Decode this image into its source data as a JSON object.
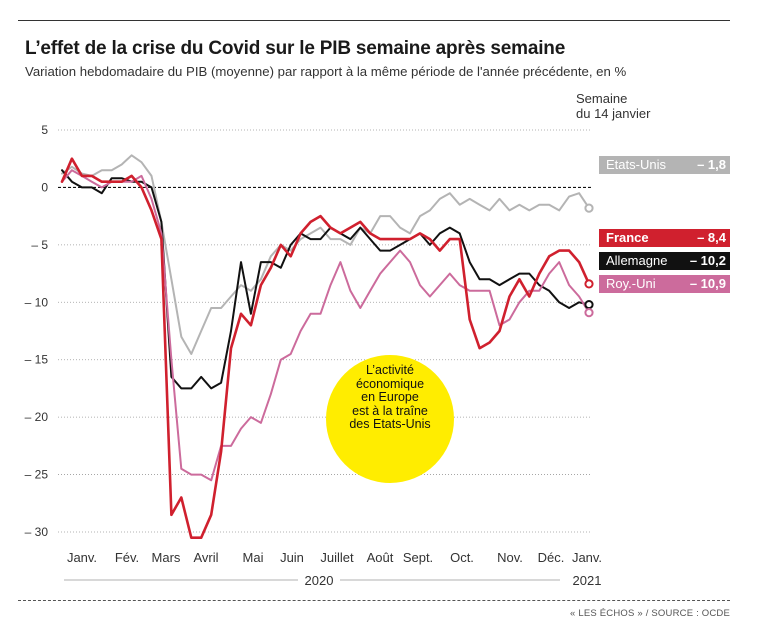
{
  "header": {
    "title": "L’effet de la crise du Covid sur le PIB semaine après semaine",
    "subtitle": "Variation hebdomadaire du PIB (moyenne) par rapport à la même période de l'année précédente, en %"
  },
  "week_note": "Semaine\ndu 14 janvier",
  "annotation": "L’activité\néconomique\nen Europe\nest à la traîne\ndes Etats-Unis",
  "source": "« LES ÉCHOS » / SOURCE : OCDE",
  "colors": {
    "us": "#b4b4b4",
    "france": "#d0202e",
    "germany": "#111111",
    "uk": "#cc6b9c",
    "bubble": "#ffed00"
  },
  "legend": [
    {
      "name": "Etats-Unis",
      "value": "– 1,8"
    },
    {
      "name": "France",
      "value": "– 8,4"
    },
    {
      "name": "Allemagne",
      "value": "– 10,2"
    },
    {
      "name": "Roy.-Uni",
      "value": "– 10,9"
    }
  ],
  "chart_data": {
    "type": "line",
    "title": "L’effet de la crise du Covid sur le PIB semaine après semaine",
    "subtitle": "Variation hebdomadaire du PIB (moyenne) par rapport à la même période de l'année précédente, en %",
    "ylim": [
      -30,
      5
    ],
    "yticks": [
      5,
      0,
      -5,
      -10,
      -15,
      -20,
      -25,
      -30
    ],
    "ytick_labels": [
      "5",
      "0",
      "– 5",
      "– 10",
      "– 15",
      "– 20",
      "– 25",
      "– 30"
    ],
    "xtick_labels": [
      "Janv.",
      "Fév.",
      "Mars",
      "Avril",
      "Mai",
      "Juin",
      "Juillet",
      "Août",
      "Sept.",
      "Oct.",
      "Nov.",
      "Déc.",
      "Janv."
    ],
    "year_labels": [
      "2020",
      "2021"
    ],
    "x_unit": "week of period (Jan 2020 – mid-Jan 2021)",
    "grid": "horizontal dotted, zero line dashed",
    "legend_position": "right",
    "series": [
      {
        "name": "Etats-Unis",
        "final": -1.8,
        "x": [
          0,
          1,
          2,
          3,
          4,
          5,
          6,
          7,
          8,
          9,
          10,
          11,
          12,
          13,
          14,
          15,
          16,
          17,
          18,
          19,
          20,
          21,
          22,
          23,
          24,
          25,
          26,
          27,
          28,
          29,
          30,
          31,
          32,
          33,
          34,
          35,
          36,
          37,
          38,
          39,
          40,
          41,
          42,
          43,
          44,
          45,
          46,
          47,
          48,
          49,
          50,
          51,
          52,
          53
        ],
        "y": [
          1.2,
          1.8,
          1.2,
          1.0,
          1.5,
          1.5,
          2.0,
          2.8,
          2.2,
          1.0,
          -3.0,
          -8.0,
          -13.0,
          -14.5,
          -12.5,
          -10.5,
          -10.5,
          -9.5,
          -8.5,
          -9.0,
          -8.0,
          -6.0,
          -5.0,
          -5.5,
          -4.5,
          -4.0,
          -3.5,
          -4.5,
          -4.5,
          -5.0,
          -3.5,
          -4.0,
          -2.5,
          -2.5,
          -3.5,
          -4.0,
          -2.5,
          -2.0,
          -1.0,
          -0.5,
          -1.5,
          -1.0,
          -1.5,
          -2.0,
          -1.0,
          -2.0,
          -1.5,
          -2.0,
          -1.5,
          -1.5,
          -2.0,
          -0.8,
          -0.5,
          -1.8
        ]
      },
      {
        "name": "Allemagne",
        "final": -10.2,
        "x": [
          0,
          1,
          2,
          3,
          4,
          5,
          6,
          7,
          8,
          9,
          10,
          11,
          12,
          13,
          14,
          15,
          16,
          17,
          18,
          19,
          20,
          21,
          22,
          23,
          24,
          25,
          26,
          27,
          28,
          29,
          30,
          31,
          32,
          33,
          34,
          35,
          36,
          37,
          38,
          39,
          40,
          41,
          42,
          43,
          44,
          45,
          46,
          47,
          48,
          49,
          50,
          51,
          52,
          53
        ],
        "y": [
          1.5,
          0.5,
          0.0,
          0.0,
          -0.5,
          0.8,
          0.8,
          0.5,
          0.5,
          0.0,
          -3.0,
          -16.5,
          -17.5,
          -17.5,
          -16.5,
          -17.5,
          -17.0,
          -12.5,
          -6.5,
          -11.0,
          -6.5,
          -6.5,
          -7.0,
          -5.0,
          -4.0,
          -4.5,
          -4.5,
          -3.5,
          -4.0,
          -4.5,
          -3.5,
          -4.5,
          -5.5,
          -5.5,
          -5.0,
          -4.5,
          -4.0,
          -5.0,
          -4.0,
          -3.5,
          -4.0,
          -6.5,
          -8.0,
          -8.0,
          -8.5,
          -8.0,
          -7.5,
          -7.5,
          -8.5,
          -9.0,
          -10.0,
          -10.5,
          -10.0,
          -10.2
        ]
      },
      {
        "name": "Roy.-Uni",
        "final": -10.9,
        "x": [
          0,
          1,
          2,
          3,
          4,
          5,
          6,
          7,
          8,
          9,
          10,
          11,
          12,
          13,
          14,
          15,
          16,
          17,
          18,
          19,
          20,
          21,
          22,
          23,
          24,
          25,
          26,
          27,
          28,
          29,
          30,
          31,
          32,
          33,
          34,
          35,
          36,
          37,
          38,
          39,
          40,
          41,
          42,
          43,
          44,
          45,
          46,
          47,
          48,
          49,
          50,
          51,
          52,
          53
        ],
        "y": [
          0.5,
          1.5,
          1.0,
          0.5,
          0.0,
          0.5,
          0.5,
          0.5,
          1.0,
          -1.0,
          -4.0,
          -15.0,
          -24.5,
          -25.0,
          -25.0,
          -25.5,
          -22.5,
          -22.5,
          -21.0,
          -20.0,
          -20.5,
          -18.0,
          -15.0,
          -14.5,
          -12.5,
          -11.0,
          -11.0,
          -8.5,
          -6.5,
          -9.0,
          -10.5,
          -9.0,
          -7.5,
          -6.5,
          -5.5,
          -6.5,
          -8.5,
          -9.5,
          -8.5,
          -7.5,
          -8.5,
          -9.0,
          -9.0,
          -9.0,
          -12.0,
          -11.5,
          -10.0,
          -9.0,
          -9.0,
          -7.5,
          -6.5,
          -8.5,
          -9.5,
          -10.9
        ]
      },
      {
        "name": "France",
        "final": -8.4,
        "x": [
          0,
          1,
          2,
          3,
          4,
          5,
          6,
          7,
          8,
          9,
          10,
          11,
          12,
          13,
          14,
          15,
          16,
          17,
          18,
          19,
          20,
          21,
          22,
          23,
          24,
          25,
          26,
          27,
          28,
          29,
          30,
          31,
          32,
          33,
          34,
          35,
          36,
          37,
          38,
          39,
          40,
          41,
          42,
          43,
          44,
          45,
          46,
          47,
          48,
          49,
          50,
          51,
          52,
          53
        ],
        "y": [
          0.5,
          2.5,
          1.0,
          1.0,
          0.5,
          0.5,
          0.5,
          1.0,
          0.0,
          -2.0,
          -4.5,
          -28.5,
          -27.0,
          -30.5,
          -30.5,
          -28.5,
          -23.0,
          -14.0,
          -11.0,
          -12.0,
          -8.5,
          -7.0,
          -5.0,
          -6.0,
          -4.0,
          -3.0,
          -2.5,
          -3.5,
          -4.0,
          -3.5,
          -3.0,
          -4.0,
          -4.5,
          -4.5,
          -4.5,
          -4.5,
          -4.0,
          -4.5,
          -5.5,
          -4.5,
          -4.5,
          -11.5,
          -14.0,
          -13.5,
          -12.5,
          -9.5,
          -8.0,
          -9.5,
          -7.5,
          -6.0,
          -5.5,
          -5.5,
          -6.5,
          -8.4
        ]
      }
    ]
  }
}
